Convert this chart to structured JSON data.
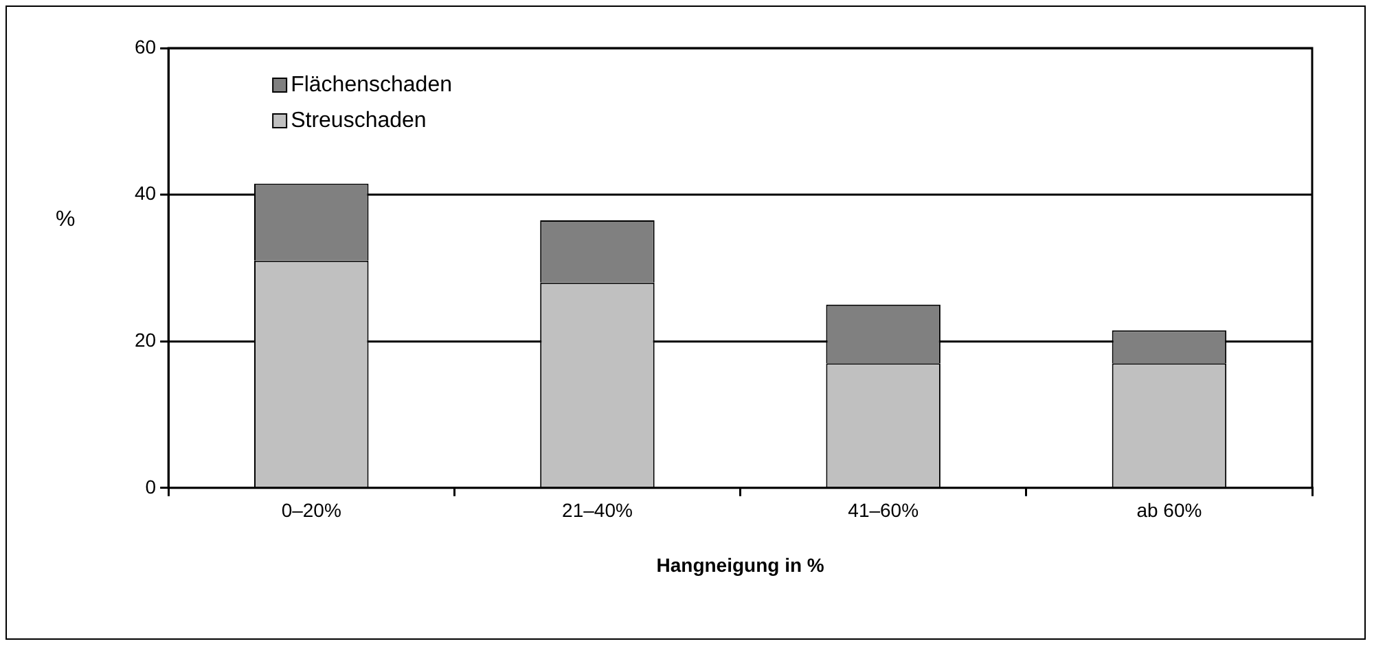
{
  "chart_data": {
    "type": "bar",
    "stacked": true,
    "categories": [
      "0–20%",
      "21–40%",
      "41–60%",
      "ab 60%"
    ],
    "series": [
      {
        "name": "Streuschaden",
        "color": "#c0c0c0",
        "values": [
          31,
          28,
          17,
          17
        ]
      },
      {
        "name": "Flächenschaden",
        "color": "#808080",
        "values": [
          10.5,
          8.5,
          8,
          4.5
        ]
      }
    ],
    "ylabel": "%",
    "xlabel": "Hangneigung in %",
    "ylim": [
      0,
      60
    ],
    "yticks": [
      0,
      20,
      40,
      60
    ],
    "grid": "y",
    "legend": "top left"
  }
}
